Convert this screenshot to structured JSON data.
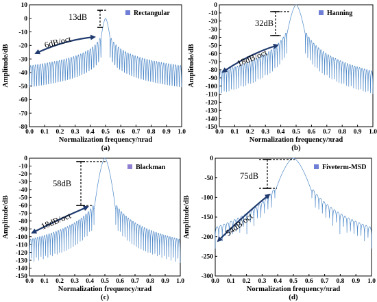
{
  "chart_data": [
    {
      "type": "line",
      "panel_label": "(a)",
      "window": "Rectangular",
      "xlabel": "Normalization frequency/πrad",
      "ylabel": "Amplitude/dB",
      "xlim": [
        0.0,
        1.0
      ],
      "ylim": [
        -80,
        10
      ],
      "xticks": [
        "0.0",
        "0.1",
        "0.2",
        "0.3",
        "0.4",
        "0.5",
        "0.6",
        "0.7",
        "0.8",
        "0.9",
        "1.0"
      ],
      "yticks": [
        "10",
        "0",
        "-10",
        "-20",
        "-30",
        "-40",
        "-50",
        "-60",
        "-70",
        "-80"
      ],
      "series": [
        {
          "name": "Rectangular",
          "mainlobe_peak_db": 0,
          "first_sidelobe_db": -13,
          "sidelobe_rolloff_db_per_oct": 6
        }
      ],
      "annotations": {
        "level_difference": "13dB",
        "rolloff": "6dB/oct"
      },
      "grid": false,
      "legend_position": "top-right",
      "color": "#4a86c8"
    },
    {
      "type": "line",
      "panel_label": "(b)",
      "window": "Hanning",
      "xlabel": "Normalization frequency/πrad",
      "ylabel": "Amplitude/dB",
      "xlim": [
        0.0,
        1.0
      ],
      "ylim": [
        -150,
        0
      ],
      "xticks": [
        "0.0",
        "0.1",
        "0.2",
        "0.3",
        "0.4",
        "0.5",
        "0.6",
        "0.7",
        "0.8",
        "0.9",
        "1.0"
      ],
      "yticks": [
        "0",
        "-10",
        "-20",
        "-30",
        "-40",
        "-50",
        "-60",
        "-70",
        "-80",
        "-90",
        "-100",
        "-110",
        "-120",
        "-130",
        "-140",
        "-150"
      ],
      "series": [
        {
          "name": "Hanning",
          "mainlobe_peak_db": 0,
          "first_sidelobe_db": -32,
          "sidelobe_rolloff_db_per_oct": 18
        }
      ],
      "annotations": {
        "level_difference": "32dB",
        "rolloff": "18dB/oct"
      },
      "grid": false,
      "legend_position": "top-right",
      "color": "#4a86c8"
    },
    {
      "type": "line",
      "panel_label": "(c)",
      "window": "Blackman",
      "xlabel": "Normalization frequency/πrad",
      "ylabel": "Amplitude/dB",
      "xlim": [
        0.0,
        1.0
      ],
      "ylim": [
        -150,
        0
      ],
      "xticks": [
        "0.0",
        "0.1",
        "0.2",
        "0.3",
        "0.4",
        "0.5",
        "0.6",
        "0.7",
        "0.8",
        "0.9",
        "1.0"
      ],
      "yticks": [
        "0",
        "-10",
        "-20",
        "-30",
        "-40",
        "-50",
        "-60",
        "-70",
        "-80",
        "-90",
        "-100",
        "-110",
        "-120",
        "-130",
        "-140",
        "-150"
      ],
      "series": [
        {
          "name": "Blackman",
          "mainlobe_peak_db": 0,
          "first_sidelobe_db": -58,
          "sidelobe_rolloff_db_per_oct": 18
        }
      ],
      "annotations": {
        "level_difference": "58dB",
        "rolloff": "18dB/oct"
      },
      "grid": false,
      "legend_position": "top-right",
      "color": "#4a86c8"
    },
    {
      "type": "line",
      "panel_label": "(d)",
      "window": "Fiveterm-MSD",
      "xlabel": "Normalization frequency/πrad",
      "ylabel": "Amplitude/dB",
      "xlim": [
        0.0,
        1.0
      ],
      "ylim": [
        -300,
        0
      ],
      "xticks": [
        "0.0",
        "0.1",
        "0.2",
        "0.3",
        "0.4",
        "0.5",
        "0.6",
        "0.7",
        "0.8",
        "0.9",
        "1.0"
      ],
      "yticks": [
        "0",
        "-50",
        "-100",
        "-150",
        "-200",
        "-250",
        "-300"
      ],
      "series": [
        {
          "name": "Fiveterm-MSD",
          "mainlobe_peak_db": 0,
          "first_sidelobe_db": -75,
          "sidelobe_rolloff_db_per_oct": 54
        }
      ],
      "annotations": {
        "level_difference": "75dB",
        "rolloff": "54dB/oct"
      },
      "grid": false,
      "legend_position": "top-right",
      "color": "#4a86c8"
    }
  ]
}
